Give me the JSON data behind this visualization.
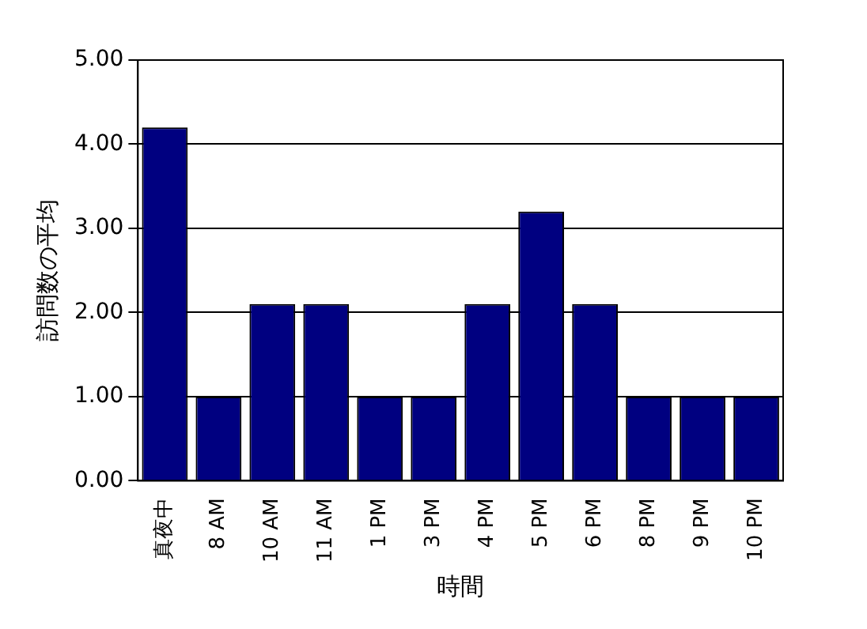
{
  "chart_data": {
    "type": "bar",
    "xlabel": "時間",
    "ylabel": "訪問数の平均",
    "categories": [
      "真夜中",
      "8 AM",
      "10 AM",
      "11 AM",
      "1 PM",
      "3 PM",
      "4 PM",
      "5 PM",
      "6 PM",
      "8 PM",
      "9 PM",
      "10 PM"
    ],
    "values": [
      4.2,
      1.0,
      2.1,
      2.1,
      1.0,
      1.0,
      2.1,
      3.2,
      2.1,
      1.0,
      1.0,
      1.0
    ],
    "color": "#000080",
    "ylim": [
      0,
      5
    ],
    "yticks": [
      {
        "value": 0,
        "label": "0.00"
      },
      {
        "value": 1,
        "label": "1.00"
      },
      {
        "value": 2,
        "label": "2.00"
      },
      {
        "value": 3,
        "label": "3.00"
      },
      {
        "value": 4,
        "label": "4.00"
      },
      {
        "value": 5,
        "label": "5.00"
      }
    ],
    "grid": "y"
  }
}
